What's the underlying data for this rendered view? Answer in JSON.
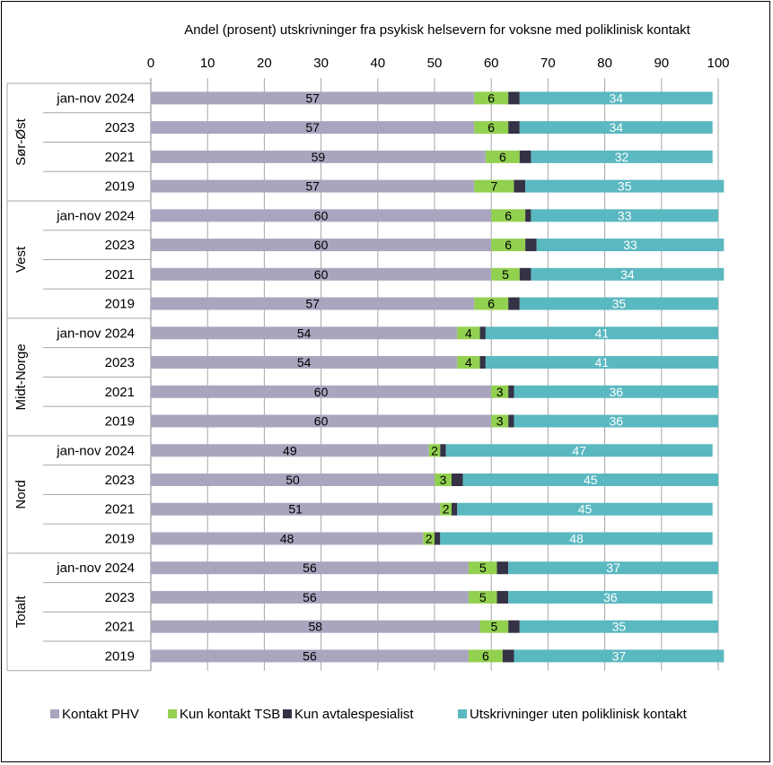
{
  "chart_data": {
    "type": "bar",
    "orientation": "horizontal",
    "stacked": true,
    "title": "Andel (prosent)  utskrivninger fra psykisk helsevern for voksne med poliklinisk kontakt",
    "xlim": [
      0,
      100
    ],
    "xticks": [
      0,
      10,
      20,
      30,
      40,
      50,
      60,
      70,
      80,
      90,
      100
    ],
    "xaxis_position": "top",
    "grid": true,
    "legend_position": "bottom",
    "groups": [
      {
        "name": "Sør-Øst",
        "categories": [
          "jan-nov 2024",
          "2023",
          "2021",
          "2019"
        ]
      },
      {
        "name": "Vest",
        "categories": [
          "jan-nov 2024",
          "2023",
          "2021",
          "2019"
        ]
      },
      {
        "name": "Midt-Norge",
        "categories": [
          "jan-nov 2024",
          "2023",
          "2021",
          "2019"
        ]
      },
      {
        "name": "Nord",
        "categories": [
          "jan-nov 2024",
          "2023",
          "2021",
          "2019"
        ]
      },
      {
        "name": "Totalt",
        "categories": [
          "jan-nov 2024",
          "2023",
          "2021",
          "2019"
        ]
      }
    ],
    "series": [
      {
        "name": "Kontakt PHV",
        "color": "#a9a5bf",
        "label_color": "#000000",
        "values": [
          57,
          57,
          59,
          57,
          60,
          60,
          60,
          57,
          54,
          54,
          60,
          60,
          49,
          50,
          51,
          48,
          56,
          56,
          58,
          56
        ]
      },
      {
        "name": "Kun kontakt TSB",
        "color": "#92d050",
        "label_color": "#000000",
        "values": [
          6,
          6,
          6,
          7,
          6,
          6,
          5,
          6,
          4,
          4,
          3,
          3,
          2,
          3,
          2,
          2,
          5,
          5,
          5,
          6
        ]
      },
      {
        "name": "Kun avtalespesialist",
        "color": "#343244",
        "label_color": null,
        "values": [
          2,
          2,
          2,
          2,
          1,
          2,
          2,
          2,
          1,
          1,
          1,
          1,
          1,
          2,
          1,
          1,
          2,
          2,
          2,
          2
        ]
      },
      {
        "name": "Utskrivninger uten poliklinisk kontakt",
        "color": "#5ab8c0",
        "label_color": "#ffffff",
        "values": [
          34,
          34,
          32,
          35,
          33,
          33,
          34,
          35,
          41,
          41,
          36,
          36,
          47,
          45,
          45,
          48,
          37,
          36,
          35,
          37
        ]
      }
    ]
  }
}
